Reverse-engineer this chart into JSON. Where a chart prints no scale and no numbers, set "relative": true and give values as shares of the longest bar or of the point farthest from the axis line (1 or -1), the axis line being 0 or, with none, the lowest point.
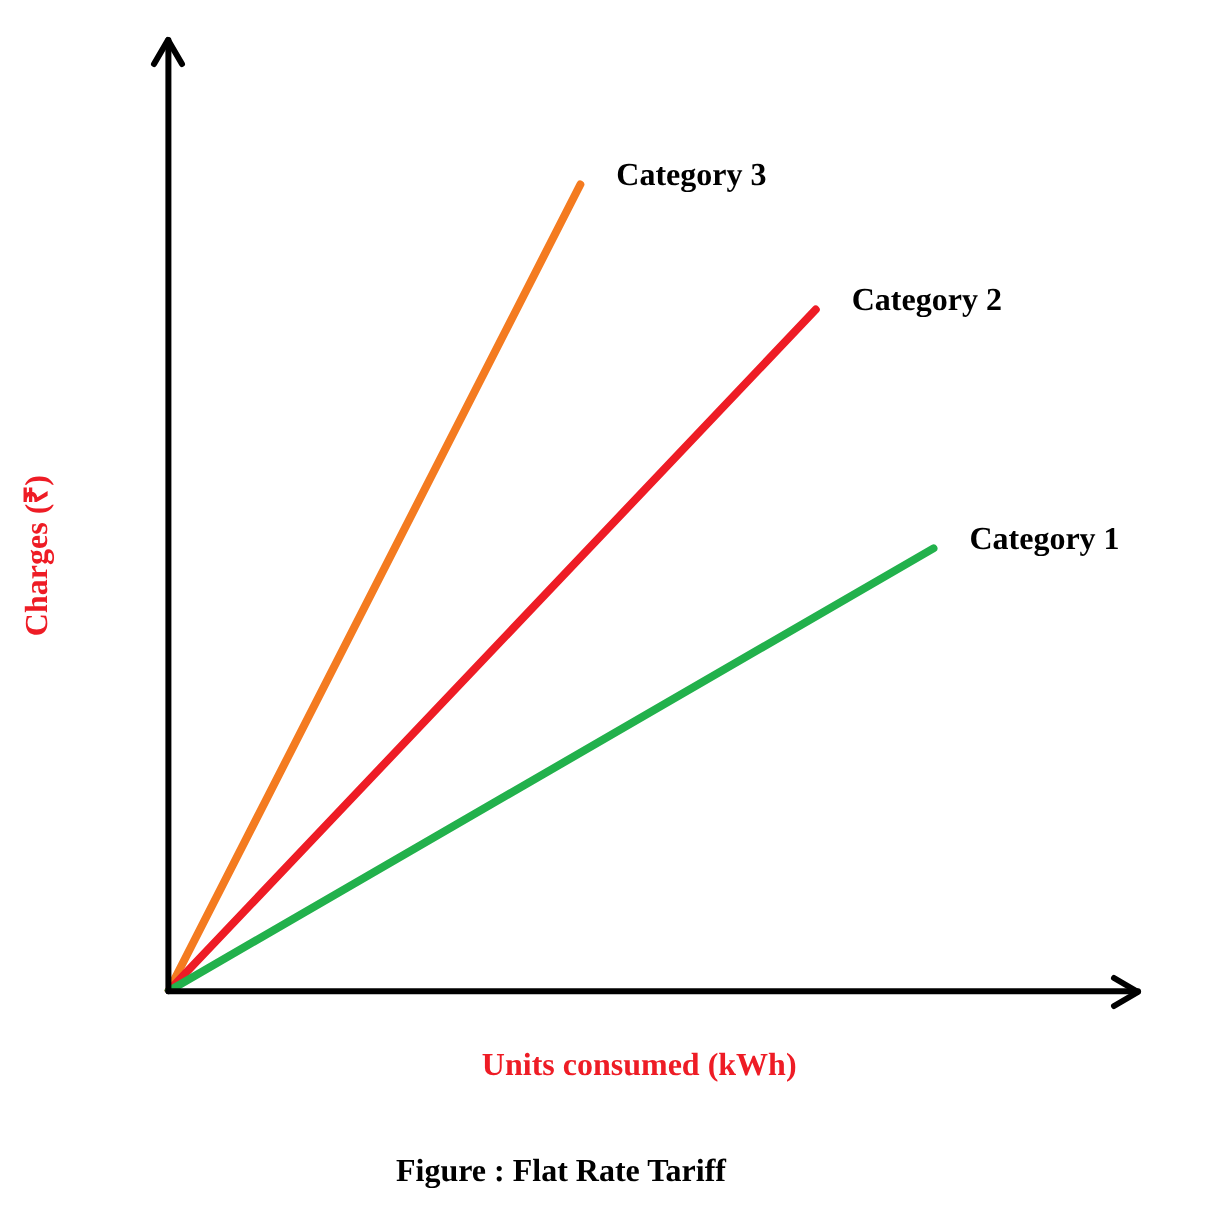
{
  "chart_data": {
    "type": "line",
    "relative": true,
    "title": "Figure : Flat Rate Tariff",
    "xlabel": "Units consumed (kWh)",
    "ylabel": "Charges (₹)",
    "grid": false,
    "legend": false,
    "marker": "none",
    "line_style": "solid",
    "categories": [
      null,
      null,
      null,
      null,
      null,
      null,
      null,
      null,
      null,
      null,
      null,
      null,
      null,
      null,
      null,
      null,
      null
    ],
    "series": [
      {
        "name": "Category 1",
        "color": "#22b14c",
        "values": [
          0,
          null,
          null,
          null,
          null,
          null,
          null,
          null,
          null,
          null,
          null,
          null,
          null,
          0.549,
          null,
          null,
          null
        ]
      },
      {
        "name": "Category 2",
        "color": "#ee1c25",
        "values": [
          0,
          null,
          null,
          null,
          null,
          null,
          null,
          null,
          null,
          null,
          null,
          0.845,
          null,
          null,
          null,
          null,
          null
        ]
      },
      {
        "name": "Category 3",
        "color": "#f47b20",
        "values": [
          0,
          null,
          null,
          null,
          null,
          null,
          null,
          1,
          null,
          null,
          null,
          null,
          null,
          null,
          null,
          null,
          null
        ]
      }
    ]
  }
}
